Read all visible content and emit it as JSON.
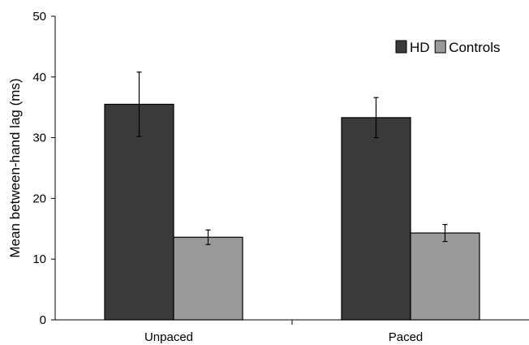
{
  "chart_data": {
    "type": "bar",
    "categories": [
      "Unpaced",
      "Paced"
    ],
    "series": [
      {
        "name": "HD",
        "values": [
          35.5,
          33.3
        ],
        "error": [
          5.3,
          3.3
        ],
        "color": "#3a3a3a"
      },
      {
        "name": "Controls",
        "values": [
          13.6,
          14.3
        ],
        "error": [
          1.2,
          1.4
        ],
        "color": "#9a9a9a"
      }
    ],
    "xlabel": "",
    "ylabel": "Mean between-hand lag (ms)",
    "ylim": [
      0,
      50
    ],
    "yticks": [
      0,
      10,
      20,
      30,
      40,
      50
    ],
    "grid": false,
    "legend_position": "top-right"
  }
}
